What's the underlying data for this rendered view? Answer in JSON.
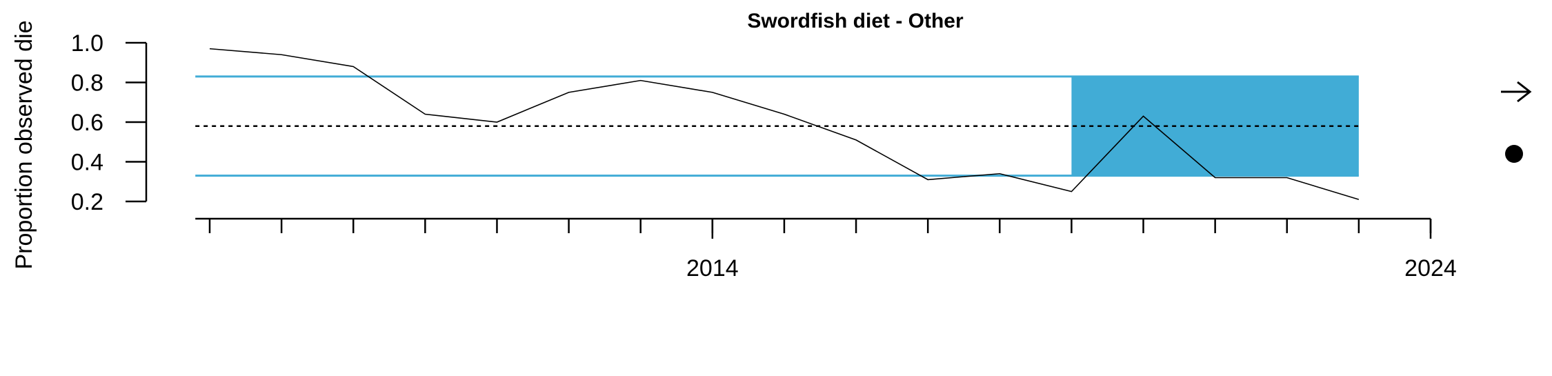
{
  "chart_data": {
    "type": "line",
    "title": "Swordfish diet - Other",
    "ylabel": "Proportion observed die",
    "xlabel": "",
    "x_tick_labels": [
      {
        "value": 2014,
        "label": "2014"
      },
      {
        "value": 2024,
        "label": "2024"
      }
    ],
    "x_minor_ticks": [
      2007,
      2008,
      2009,
      2010,
      2011,
      2012,
      2013,
      2014,
      2015,
      2016,
      2017,
      2018,
      2019,
      2020,
      2021,
      2022,
      2023,
      2024
    ],
    "y_ticks": [
      {
        "value": 0.2,
        "label": "0.2"
      },
      {
        "value": 0.4,
        "label": "0.4"
      },
      {
        "value": 0.6,
        "label": "0.6"
      },
      {
        "value": 0.8,
        "label": "0.8"
      },
      {
        "value": 1.0,
        "label": "1.0"
      }
    ],
    "xlim": [
      2006.8,
      2024
    ],
    "ylim": [
      0.12,
      1.06
    ],
    "series": [
      {
        "x": [
          2007,
          2008,
          2009,
          2010,
          2011,
          2012,
          2013,
          2014,
          2015,
          2016,
          2017,
          2018,
          2019,
          2020,
          2021,
          2022,
          2023
        ],
        "values": [
          0.97,
          0.94,
          0.88,
          0.64,
          0.6,
          0.75,
          0.81,
          0.75,
          0.64,
          0.51,
          0.31,
          0.34,
          0.25,
          0.63,
          0.32,
          0.32,
          0.21
        ]
      }
    ],
    "mean_line": 0.58,
    "upper_line": 0.83,
    "lower_line": 0.33,
    "highlight_x_range": [
      2019,
      2023
    ],
    "colors": {
      "line": "#000000",
      "band": "#41acd6",
      "bounds": "#41acd6",
      "mean": "#000000"
    },
    "legend_symbols": [
      "arrow-right-icon",
      "dot-icon"
    ],
    "grid": false
  }
}
